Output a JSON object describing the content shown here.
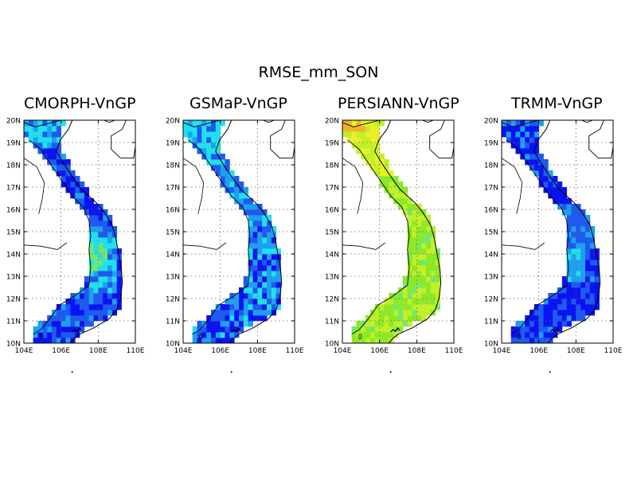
{
  "figure": {
    "title": "RMSE_mm_SON"
  },
  "panels": [
    {
      "title": "CMORPH-VnGP",
      "scheme": "cmorph"
    },
    {
      "title": "GSMaP-VnGP",
      "scheme": "gsmap"
    },
    {
      "title": "PERSIANN-VnGP",
      "scheme": "persiann"
    },
    {
      "title": "TRMM-VnGP",
      "scheme": "trmm"
    }
  ],
  "axes": {
    "lat_ticks": [
      "10N",
      "11N",
      "12N",
      "13N",
      "14N",
      "15N",
      "16N",
      "17N",
      "18N",
      "19N",
      "20N"
    ],
    "lon_ticks": [
      "104E",
      "106E",
      "108E",
      "110E"
    ],
    "lat_range": [
      10,
      20
    ],
    "lon_range": [
      104,
      110
    ],
    "grid": "dotted"
  },
  "colors": {
    "deep_blue": "#0a14f0",
    "blue": "#1e5af0",
    "sky": "#1ea0f0",
    "cyan": "#20e0f0",
    "green_light": "#70e870",
    "green": "#8ce828",
    "yellow_green": "#c0f028",
    "yellow": "#e8f028",
    "orange": "#f0b428"
  }
}
